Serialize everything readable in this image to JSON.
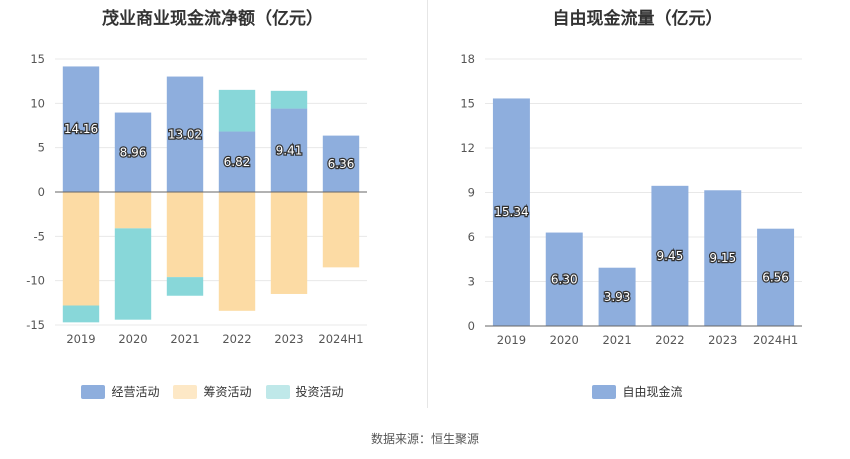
{
  "footer": {
    "source": "数据来源：恒生聚源"
  },
  "colors": {
    "operating": "#8eaedd",
    "financing": "#fcdba4",
    "investing": "#88d7d9",
    "free_cash_flow": "#8eaedd",
    "grid": "#e8e8e8",
    "axis": "#666666"
  },
  "chart_data": [
    {
      "type": "bar",
      "title": "茂业商业现金流净额（亿元）",
      "stacked": true,
      "categories": [
        "2019",
        "2020",
        "2021",
        "2022",
        "2023",
        "2024H1"
      ],
      "ylim": [
        -15,
        15
      ],
      "yticks": [
        15,
        10,
        5,
        0,
        -5,
        -10,
        -15
      ],
      "grid": true,
      "legend_position": "bottom",
      "series": [
        {
          "name": "经营活动",
          "key": "operating",
          "values": [
            14.16,
            8.96,
            13.02,
            6.82,
            9.41,
            6.36
          ],
          "labels": [
            "14.16",
            "8.96",
            "13.02",
            "6.82",
            "9.41",
            "6.36"
          ]
        },
        {
          "name": "筹资活动",
          "key": "financing",
          "values": [
            -12.8,
            -4.1,
            -9.6,
            -13.4,
            -11.5,
            -8.5
          ]
        },
        {
          "name": "投资活动",
          "key": "investing",
          "values": [
            -1.9,
            -10.3,
            -2.1,
            4.7,
            2.0,
            0
          ]
        }
      ]
    },
    {
      "type": "bar",
      "title": "自由现金流量（亿元）",
      "stacked": false,
      "categories": [
        "2019",
        "2020",
        "2021",
        "2022",
        "2023",
        "2024H1"
      ],
      "ylim": [
        0,
        18
      ],
      "yticks": [
        18,
        15,
        12,
        9,
        6,
        3,
        0
      ],
      "grid": true,
      "legend_position": "bottom",
      "series": [
        {
          "name": "自由现金流",
          "key": "free_cash_flow",
          "values": [
            15.34,
            6.3,
            3.93,
            9.45,
            9.15,
            6.56
          ],
          "labels": [
            "15.34",
            "6.30",
            "3.93",
            "9.45",
            "9.15",
            "6.56"
          ]
        }
      ]
    }
  ]
}
